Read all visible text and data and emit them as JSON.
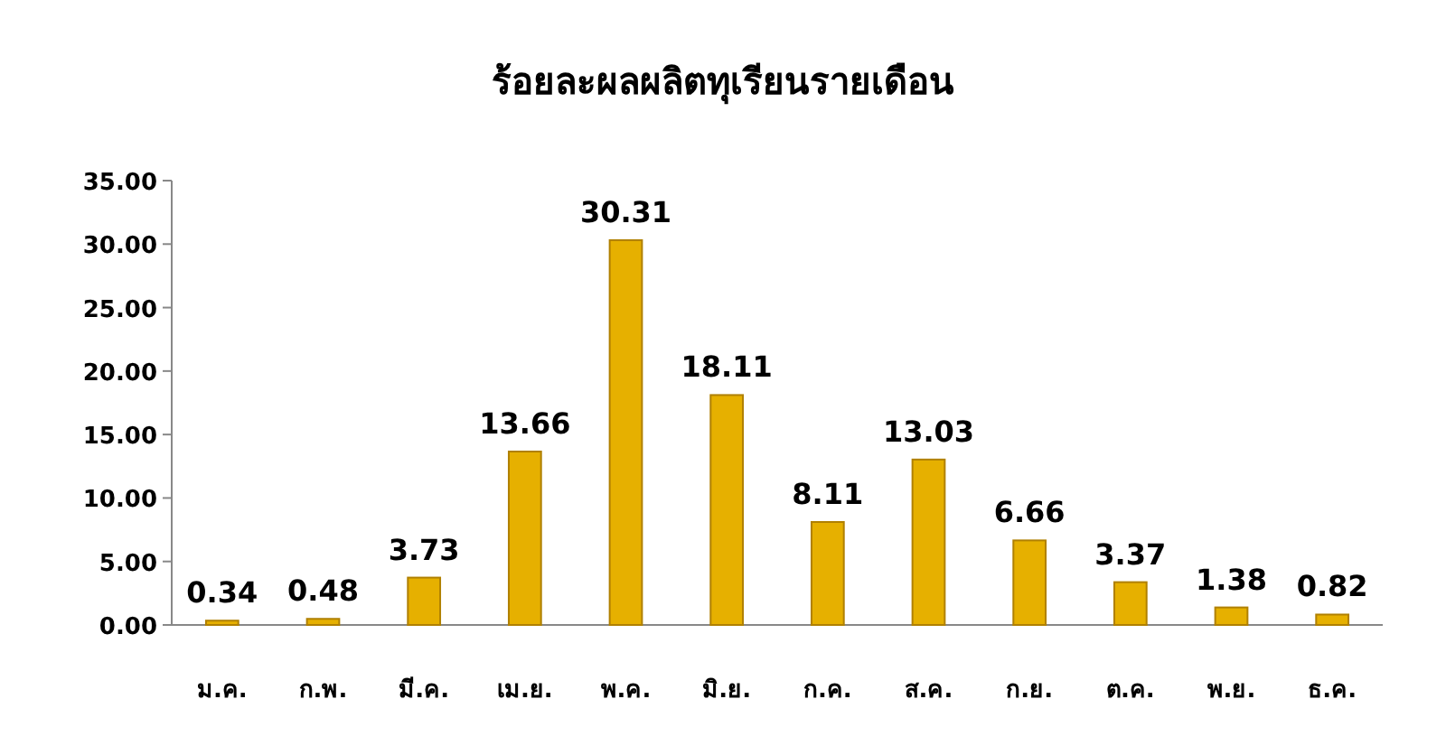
{
  "chart_data": {
    "type": "bar",
    "title": "ร้อยละผลผลิตทุเรียนรายเดือน",
    "categories": [
      "ม.ค.",
      "ก.พ.",
      "มี.ค.",
      "เม.ย.",
      "พ.ค.",
      "มิ.ย.",
      "ก.ค.",
      "ส.ค.",
      "ก.ย.",
      "ต.ค.",
      "พ.ย.",
      "ธ.ค."
    ],
    "values": [
      0.34,
      0.48,
      3.73,
      13.66,
      30.31,
      18.11,
      8.11,
      13.03,
      6.66,
      3.37,
      1.38,
      0.82
    ],
    "color": "#e6b000",
    "ylim": [
      0,
      35
    ],
    "yticks": [
      {
        "value": 0,
        "label": "0.00"
      },
      {
        "value": 5,
        "label": "5.00"
      },
      {
        "value": 10,
        "label": "10.00"
      },
      {
        "value": 15,
        "label": "15.00"
      },
      {
        "value": 20,
        "label": "20.00"
      },
      {
        "value": 25,
        "label": "25.00"
      },
      {
        "value": 30,
        "label": "30.00"
      },
      {
        "value": 35,
        "label": "35.00"
      }
    ],
    "data_labels": true
  }
}
